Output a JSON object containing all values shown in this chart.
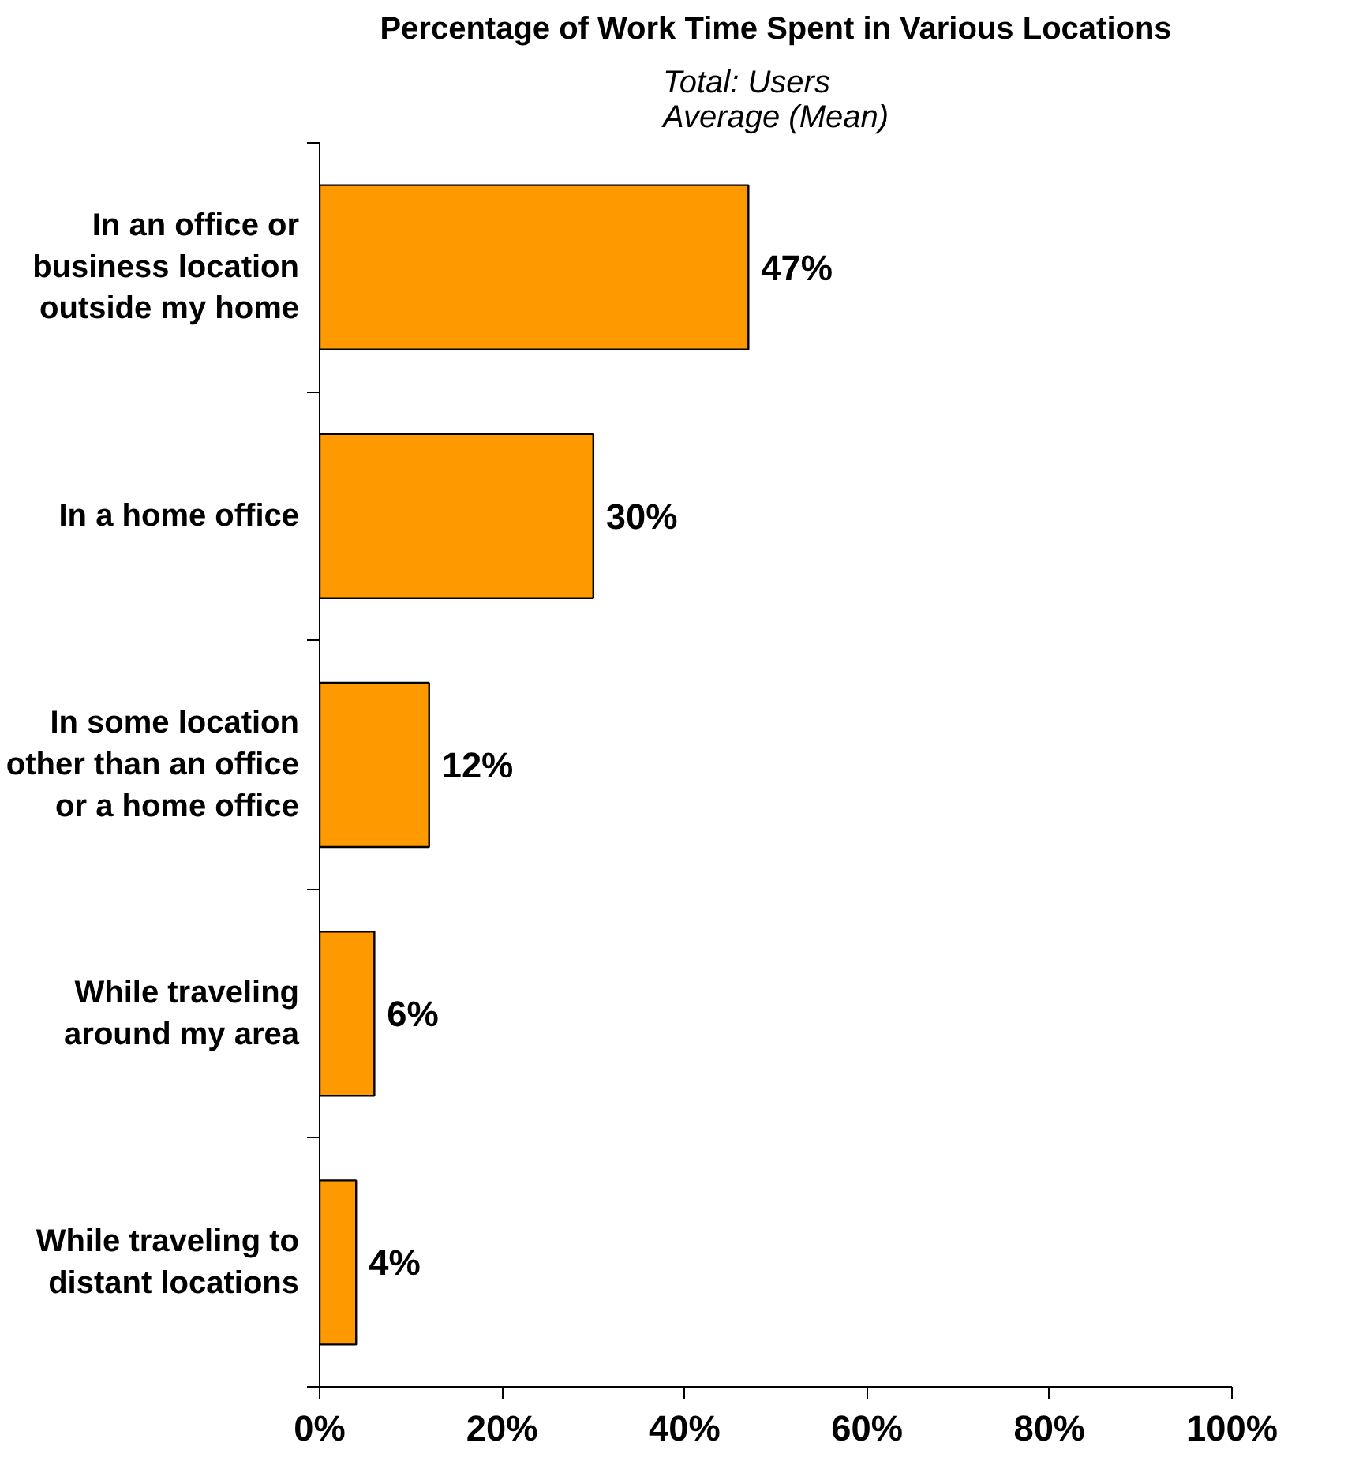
{
  "chart_data": {
    "type": "bar",
    "orientation": "horizontal",
    "title": "Percentage of Work Time Spent in Various Locations",
    "subtitle": "Total: Users\nAverage (Mean)",
    "categories": [
      "In an office or business location outside my home",
      "In a home office",
      "In some location other than an office or a home office",
      "While traveling around my area",
      "While traveling to distant locations"
    ],
    "values": [
      47,
      30,
      12,
      6,
      4
    ],
    "value_labels": [
      "47%",
      "30%",
      "12%",
      "6%",
      "4%"
    ],
    "color": "#ff9900",
    "xlim": [
      0,
      100
    ],
    "xticks": [
      {
        "value": 0,
        "label": "0%"
      },
      {
        "value": 20,
        "label": "20%"
      },
      {
        "value": 40,
        "label": "40%"
      },
      {
        "value": 60,
        "label": "60%"
      },
      {
        "value": 80,
        "label": "80%"
      },
      {
        "value": 100,
        "label": "100%"
      }
    ],
    "grid": false
  }
}
